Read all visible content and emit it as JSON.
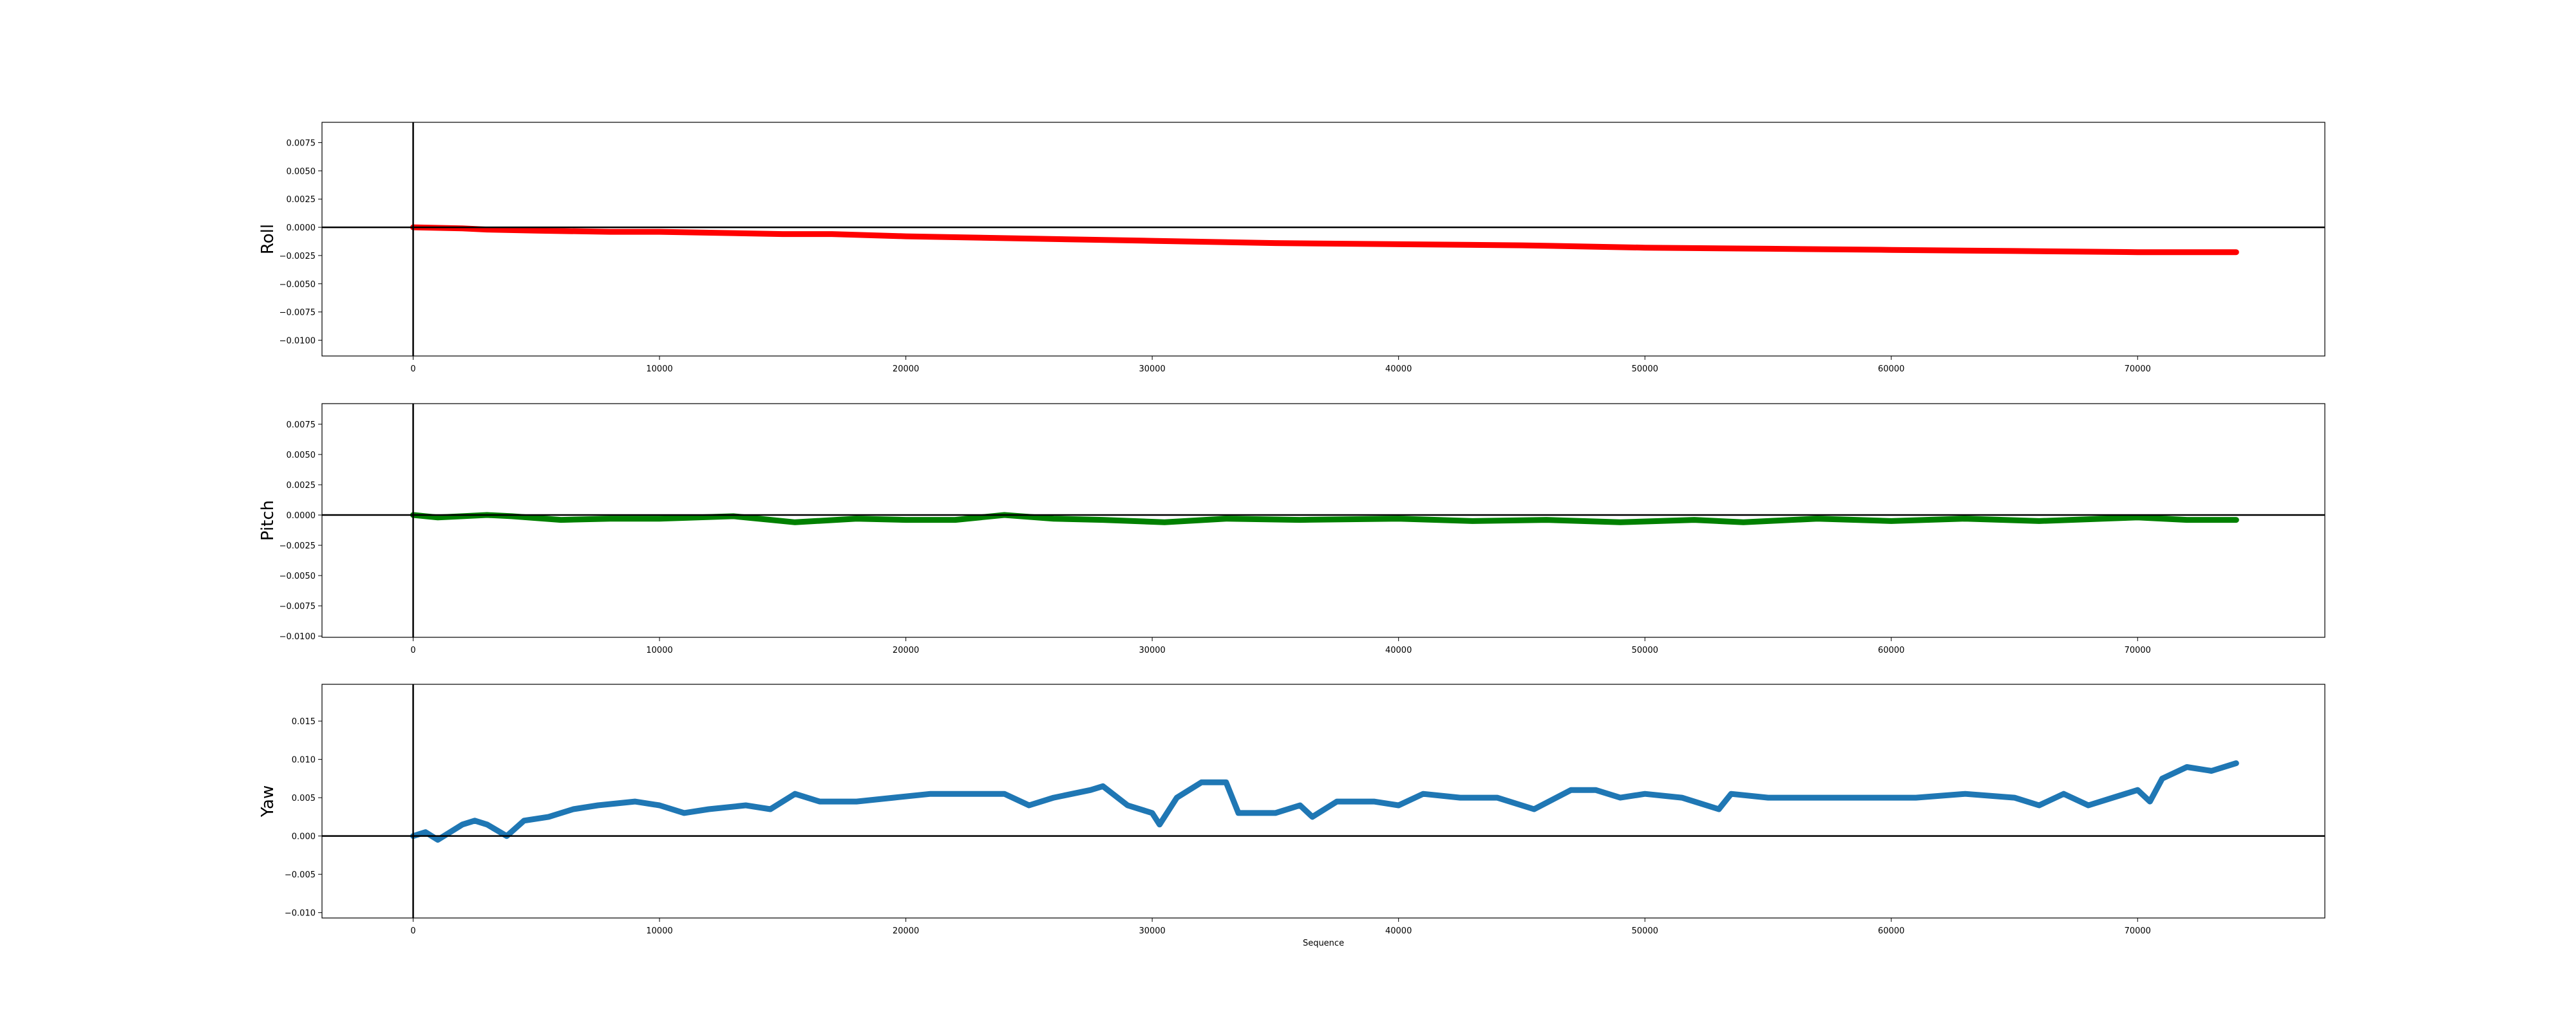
{
  "chart_data": [
    {
      "type": "line",
      "ylabel": "Roll",
      "xlabel": "",
      "color": "#ff0000",
      "line_weight": "thick",
      "xlim": [
        -3700,
        77600
      ],
      "ylim": [
        -0.0114,
        0.0093
      ],
      "xticks": [
        0,
        10000,
        20000,
        30000,
        40000,
        50000,
        60000,
        70000
      ],
      "xtick_labels": [
        "0",
        "10000",
        "20000",
        "30000",
        "40000",
        "50000",
        "60000",
        "70000"
      ],
      "yticks": [
        0.0075,
        0.005,
        0.0025,
        0.0,
        -0.0025,
        -0.005,
        -0.0075,
        -0.01
      ],
      "ytick_labels": [
        "0.0075",
        "0.0050",
        "0.0025",
        "0.0000",
        "−0.0025",
        "−0.0050",
        "−0.0075",
        "−0.0100"
      ],
      "reference_lines": {
        "x": 0,
        "y": 0
      },
      "series": [
        {
          "x": [
            0,
            2000,
            3000,
            5000,
            8000,
            10000,
            15000,
            17000,
            20000,
            25000,
            30000,
            35000,
            40000,
            45000,
            50000,
            55000,
            60000,
            65000,
            70000,
            74000
          ],
          "y": [
            0.0,
            -0.0001,
            -0.0002,
            -0.0003,
            -0.0004,
            -0.0004,
            -0.0006,
            -0.0006,
            -0.0008,
            -0.001,
            -0.0012,
            -0.0014,
            -0.0015,
            -0.0016,
            -0.0018,
            -0.0019,
            -0.002,
            -0.0021,
            -0.0022,
            -0.0022
          ]
        }
      ]
    },
    {
      "type": "line",
      "ylabel": "Pitch",
      "xlabel": "",
      "color": "#008000",
      "line_weight": "thick",
      "xlim": [
        -3700,
        77600
      ],
      "ylim": [
        -0.0101,
        0.0092
      ],
      "xticks": [
        0,
        10000,
        20000,
        30000,
        40000,
        50000,
        60000,
        70000
      ],
      "xtick_labels": [
        "0",
        "10000",
        "20000",
        "30000",
        "40000",
        "50000",
        "60000",
        "70000"
      ],
      "yticks": [
        0.0075,
        0.005,
        0.0025,
        0.0,
        -0.0025,
        -0.005,
        -0.0075,
        -0.01
      ],
      "ytick_labels": [
        "0.0075",
        "0.0050",
        "0.0025",
        "0.0000",
        "−0.0025",
        "−0.0050",
        "−0.0075",
        "−0.0100"
      ],
      "reference_lines": {
        "x": 0,
        "y": 0
      },
      "series": [
        {
          "x": [
            0,
            1000,
            3000,
            4000,
            6000,
            8000,
            10000,
            13000,
            15500,
            18000,
            20000,
            22000,
            24000,
            26000,
            28000,
            30500,
            33000,
            36000,
            40000,
            43000,
            46000,
            49000,
            52000,
            54000,
            57000,
            60000,
            63000,
            66000,
            70000,
            72000,
            74000
          ],
          "y": [
            0.0,
            -0.0002,
            0.0,
            -0.0001,
            -0.0004,
            -0.0003,
            -0.0003,
            -0.0001,
            -0.0006,
            -0.0003,
            -0.0004,
            -0.0004,
            0.0,
            -0.0003,
            -0.0004,
            -0.0006,
            -0.0003,
            -0.0004,
            -0.0003,
            -0.0005,
            -0.0004,
            -0.0006,
            -0.0004,
            -0.0006,
            -0.0003,
            -0.0005,
            -0.0003,
            -0.0005,
            -0.0002,
            -0.0004,
            -0.0004
          ]
        }
      ]
    },
    {
      "type": "line",
      "ylabel": "Yaw",
      "xlabel": "Sequence",
      "color": "#1f77b4",
      "line_weight": "thick",
      "xlim": [
        -3700,
        77600
      ],
      "ylim": [
        -0.0107,
        0.0198
      ],
      "xticks": [
        0,
        10000,
        20000,
        30000,
        40000,
        50000,
        60000,
        70000
      ],
      "xtick_labels": [
        "0",
        "10000",
        "20000",
        "30000",
        "40000",
        "50000",
        "60000",
        "70000"
      ],
      "yticks": [
        0.015,
        0.01,
        0.005,
        0.0,
        -0.005,
        -0.01
      ],
      "ytick_labels": [
        "0.015",
        "0.010",
        "0.005",
        "0.000",
        "−0.005",
        "−0.010"
      ],
      "reference_lines": {
        "x": 0,
        "y": 0
      },
      "series": [
        {
          "x": [
            0,
            500,
            1000,
            1500,
            2000,
            2500,
            3000,
            3800,
            4500,
            5500,
            6500,
            7500,
            9000,
            10000,
            11000,
            12000,
            13500,
            14500,
            15500,
            16500,
            18000,
            19500,
            21000,
            22000,
            24000,
            25000,
            26000,
            27500,
            28000,
            29000,
            30000,
            30300,
            31000,
            32000,
            33000,
            33500,
            35000,
            36000,
            36500,
            37500,
            39000,
            40000,
            41000,
            42500,
            44000,
            45500,
            47000,
            48000,
            49000,
            50000,
            51500,
            53000,
            53500,
            55000,
            57000,
            59000,
            61000,
            63000,
            65000,
            66000,
            67000,
            68000,
            69000,
            70000,
            70500,
            71000,
            72000,
            73000,
            74000
          ],
          "y": [
            0.0,
            0.0005,
            -0.0005,
            0.0005,
            0.0015,
            0.002,
            0.0015,
            0.0,
            0.002,
            0.0025,
            0.0035,
            0.004,
            0.0045,
            0.004,
            0.003,
            0.0035,
            0.004,
            0.0035,
            0.0055,
            0.0045,
            0.0045,
            0.005,
            0.0055,
            0.0055,
            0.0055,
            0.004,
            0.005,
            0.006,
            0.0065,
            0.004,
            0.003,
            0.0015,
            0.005,
            0.007,
            0.007,
            0.003,
            0.003,
            0.004,
            0.0025,
            0.0045,
            0.0045,
            0.004,
            0.0055,
            0.005,
            0.005,
            0.0035,
            0.006,
            0.006,
            0.005,
            0.0055,
            0.005,
            0.0035,
            0.0055,
            0.005,
            0.005,
            0.005,
            0.005,
            0.0055,
            0.005,
            0.004,
            0.0055,
            0.004,
            0.005,
            0.006,
            0.0045,
            0.0075,
            0.009,
            0.0085,
            0.0095
          ]
        }
      ]
    }
  ]
}
